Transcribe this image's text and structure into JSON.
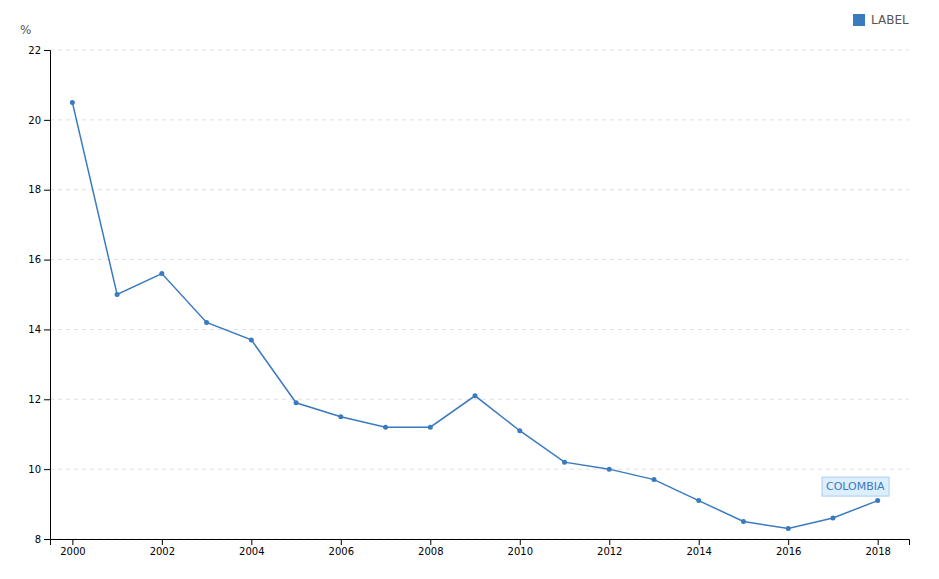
{
  "chart_data": {
    "type": "line",
    "y_label": "%",
    "x": [
      2000,
      2001,
      2002,
      2003,
      2004,
      2005,
      2006,
      2007,
      2008,
      2009,
      2010,
      2011,
      2012,
      2013,
      2014,
      2015,
      2016,
      2017,
      2018
    ],
    "series": [
      {
        "name": "LABEL",
        "color": "#3a7abf",
        "marker": "circle",
        "line_style": "solid",
        "values": [
          20.5,
          15.0,
          15.6,
          14.2,
          13.7,
          11.9,
          11.5,
          11.2,
          11.2,
          12.1,
          11.1,
          10.2,
          10.0,
          9.7,
          9.1,
          8.5,
          8.3,
          8.6,
          9.1
        ]
      }
    ],
    "xlim": [
      1999.5,
      2018.7
    ],
    "xticks": [
      2000,
      2002,
      2004,
      2006,
      2008,
      2010,
      2012,
      2014,
      2016,
      2018
    ],
    "ylim": [
      8,
      22
    ],
    "yticks": [
      8,
      10,
      12,
      14,
      16,
      18,
      20,
      22
    ],
    "grid": "y",
    "legend": "top-right",
    "annotations": [
      {
        "text": "COLOMBIA",
        "x": 2017.5,
        "y": 9.5
      }
    ]
  }
}
